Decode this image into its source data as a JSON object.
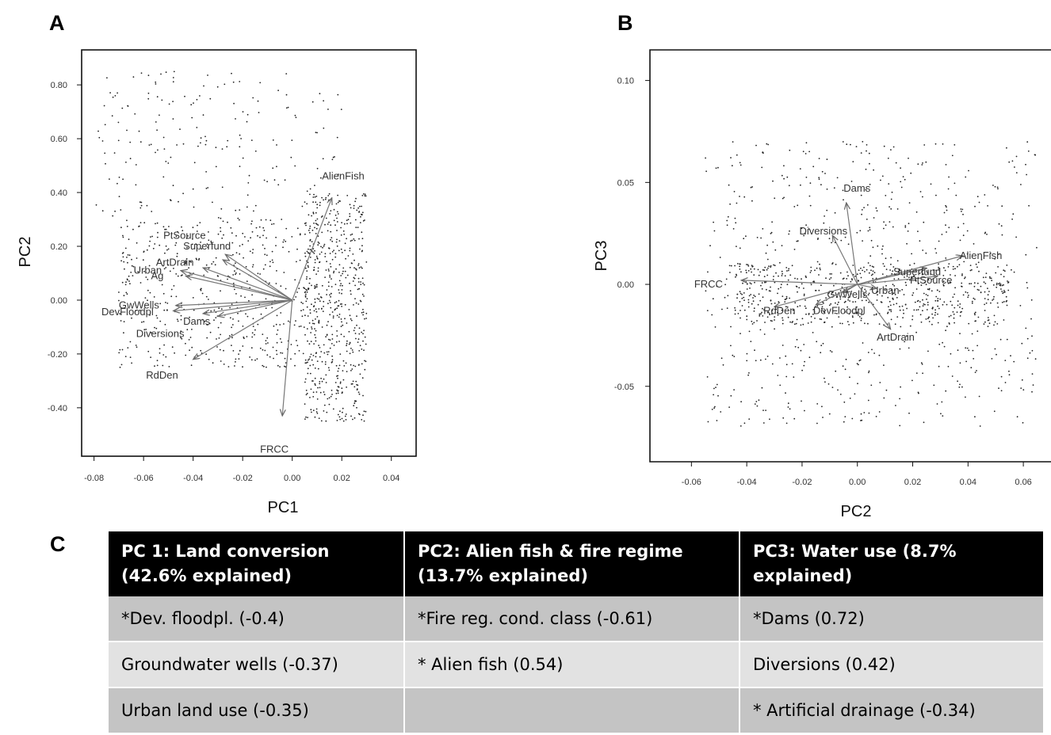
{
  "panels": {
    "a": "A",
    "b": "B",
    "c": "C"
  },
  "chart_data": [
    {
      "type": "scatter",
      "panel": "A",
      "xlabel": "PC1",
      "ylabel": "PC2",
      "xlim": [
        -0.085,
        0.05
      ],
      "ylim": [
        -0.58,
        0.93
      ],
      "xticks": [
        "-0.08",
        "-0.06",
        "-0.04",
        "-0.02",
        "0.00",
        "0.02",
        "0.04"
      ],
      "xtick_values": [
        -0.08,
        -0.06,
        -0.04,
        -0.02,
        0.0,
        0.02,
        0.04
      ],
      "yticks": [
        "0.80",
        "0.60",
        "0.40",
        "0.20",
        "0.00",
        "-0.20",
        "-0.40"
      ],
      "ytick_values": [
        0.8,
        0.6,
        0.4,
        0.2,
        0.0,
        -0.2,
        -0.4
      ],
      "vectors": [
        {
          "name": "AlienFish",
          "x": 0.016,
          "y": 0.38,
          "lx": 0.012,
          "ly": 0.46
        },
        {
          "name": "PtSource",
          "x": -0.027,
          "y": 0.17,
          "lx": -0.052,
          "ly": 0.24
        },
        {
          "name": "Superfund",
          "x": -0.028,
          "y": 0.15,
          "lx": -0.044,
          "ly": 0.2
        },
        {
          "name": "ArtDrain",
          "x": -0.036,
          "y": 0.12,
          "lx": -0.055,
          "ly": 0.14
        },
        {
          "name": "Urban",
          "x": -0.045,
          "y": 0.11,
          "lx": -0.064,
          "ly": 0.11
        },
        {
          "name": "Ag",
          "x": -0.043,
          "y": 0.09,
          "lx": -0.057,
          "ly": 0.09
        },
        {
          "name": "GwWells",
          "x": -0.047,
          "y": -0.02,
          "lx": -0.07,
          "ly": -0.02
        },
        {
          "name": "DevFloodpl",
          "x": -0.048,
          "y": -0.04,
          "lx": -0.077,
          "ly": -0.045
        },
        {
          "name": "Dams",
          "x": -0.03,
          "y": -0.06,
          "lx": -0.044,
          "ly": -0.08
        },
        {
          "name": "Diversions",
          "x": -0.036,
          "y": -0.05,
          "lx": -0.063,
          "ly": -0.125
        },
        {
          "name": "RdDen",
          "x": -0.04,
          "y": -0.22,
          "lx": -0.059,
          "ly": -0.28
        },
        {
          "name": "FRCC",
          "x": -0.004,
          "y": -0.43,
          "lx": -0.013,
          "ly": -0.555
        }
      ]
    },
    {
      "type": "scatter",
      "panel": "B",
      "xlabel": "PC2",
      "ylabel": "PC3",
      "xlim": [
        -0.075,
        0.07
      ],
      "ylim": [
        -0.087,
        0.115
      ],
      "xticks": [
        "-0.06",
        "-0.04",
        "-0.02",
        "0.00",
        "0.02",
        "0.04",
        "0.06"
      ],
      "xtick_values": [
        -0.06,
        -0.04,
        -0.02,
        0.0,
        0.02,
        0.04,
        0.06
      ],
      "yticks": [
        "0.10",
        "0.05",
        "0.00",
        "-0.05"
      ],
      "ytick_values": [
        0.1,
        0.05,
        0.0,
        -0.05
      ],
      "vectors": [
        {
          "name": "FRCC",
          "x": -0.042,
          "y": 0.002,
          "lx": -0.059,
          "ly": 0.0
        },
        {
          "name": "AlienFish",
          "x": 0.038,
          "y": 0.014,
          "lx": 0.037,
          "ly": 0.014
        },
        {
          "name": "Dams",
          "x": -0.004,
          "y": 0.04,
          "lx": -0.005,
          "ly": 0.047
        },
        {
          "name": "Diversions",
          "x": -0.009,
          "y": 0.024,
          "lx": -0.021,
          "ly": 0.026
        },
        {
          "name": "Superfund",
          "x": 0.025,
          "y": 0.008,
          "lx": 0.013,
          "ly": 0.006
        },
        {
          "name": "PtSource",
          "x": 0.029,
          "y": 0.004,
          "lx": 0.019,
          "ly": 0.002
        },
        {
          "name": "GwWells",
          "x": -0.005,
          "y": -0.004,
          "lx": -0.011,
          "ly": -0.005
        },
        {
          "name": "Urban",
          "x": 0.007,
          "y": -0.002,
          "lx": 0.005,
          "ly": -0.003
        },
        {
          "name": "DevFloodpl",
          "x": -0.015,
          "y": -0.01,
          "lx": -0.016,
          "ly": -0.013
        },
        {
          "name": "RdDen",
          "x": -0.03,
          "y": -0.011,
          "lx": -0.034,
          "ly": -0.013
        },
        {
          "name": "ArtDrain",
          "x": 0.012,
          "y": -0.022,
          "lx": 0.007,
          "ly": -0.026
        }
      ]
    }
  ],
  "table": {
    "headers": [
      [
        "PC 1: Land conversion",
        "(42.6% explained)"
      ],
      [
        "PC2: Alien fish & fire regime",
        "(13.7% explained)"
      ],
      [
        "PC3: Water use (8.7%",
        "explained)"
      ]
    ],
    "rows": [
      [
        "*Dev. floodpl. (-0.4)",
        "*Fire reg. cond. class (-0.61)",
        "*Dams (0.72)"
      ],
      [
        "Groundwater wells (-0.37)",
        "* Alien fish (0.54)",
        "Diversions (0.42)"
      ],
      [
        "Urban land use (-0.35)",
        "",
        "* Artificial drainage (-0.34)"
      ]
    ]
  }
}
